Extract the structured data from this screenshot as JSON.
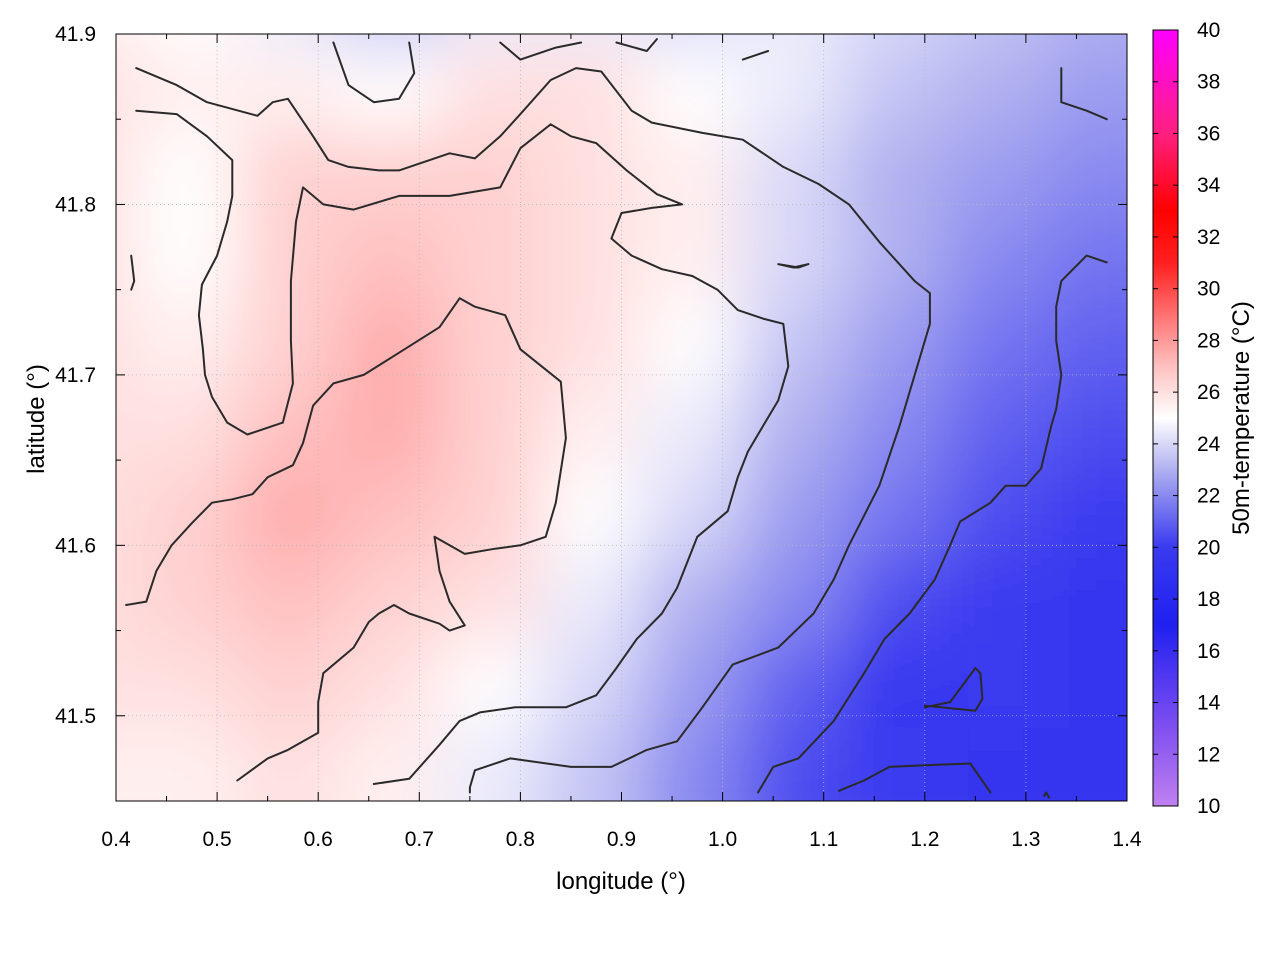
{
  "chart_data": {
    "type": "heatmap",
    "xlabel": "longitude (°)",
    "ylabel": "latitude (°)",
    "colorbar_label": "50m-temperature (°C)",
    "xlim": [
      0.4,
      1.4
    ],
    "ylim": [
      41.45,
      41.9
    ],
    "x_ticks": [
      "0.4",
      "0.5",
      "0.6",
      "0.7",
      "0.8",
      "0.9",
      "1.0",
      "1.1",
      "1.2",
      "1.3",
      "1.4"
    ],
    "y_ticks": [
      "41.5",
      "41.6",
      "41.7",
      "41.8",
      "41.9"
    ],
    "colorbar_range": [
      10,
      40
    ],
    "colorbar_ticks": [
      "10",
      "12",
      "14",
      "16",
      "18",
      "20",
      "22",
      "24",
      "26",
      "28",
      "30",
      "32",
      "34",
      "36",
      "38",
      "40"
    ],
    "colorbar_colors": [
      {
        "value": 10,
        "color": "#c080f0"
      },
      {
        "value": 13,
        "color": "#8050f0"
      },
      {
        "value": 17,
        "color": "#2020f0"
      },
      {
        "value": 20,
        "color": "#3a3af0"
      },
      {
        "value": 23,
        "color": "#b0b0f0"
      },
      {
        "value": 25,
        "color": "#ffffff"
      },
      {
        "value": 27,
        "color": "#ffc0c0"
      },
      {
        "value": 29,
        "color": "#ff7070"
      },
      {
        "value": 31,
        "color": "#ff2020"
      },
      {
        "value": 33,
        "color": "#ff0000"
      },
      {
        "value": 36,
        "color": "#ff2080"
      },
      {
        "value": 40,
        "color": "#ff00ff"
      }
    ],
    "grid": true,
    "field_samples": {
      "x": [
        0.4,
        0.5,
        0.6,
        0.7,
        0.8,
        0.9,
        1.0,
        1.1,
        1.2,
        1.3,
        1.4
      ],
      "y": [
        41.9,
        41.85,
        41.8,
        41.75,
        41.7,
        41.65,
        41.6,
        41.55,
        41.5,
        41.45
      ],
      "z": [
        [
          25.5,
          25.0,
          24.5,
          23.5,
          24.5,
          24.5,
          24.0,
          24.5,
          24.0,
          23.5,
          23.0
        ],
        [
          26.0,
          25.5,
          25.5,
          25.0,
          26.0,
          26.0,
          25.0,
          24.5,
          23.5,
          23.0,
          22.5
        ],
        [
          26.0,
          25.0,
          26.5,
          26.5,
          26.5,
          26.0,
          25.5,
          24.0,
          23.0,
          22.5,
          22.0
        ],
        [
          26.0,
          25.0,
          26.5,
          27.0,
          26.5,
          26.0,
          25.5,
          24.0,
          23.0,
          22.0,
          21.5
        ],
        [
          26.0,
          25.5,
          26.5,
          27.5,
          26.5,
          26.0,
          25.0,
          23.5,
          22.5,
          21.5,
          21.0
        ],
        [
          26.0,
          26.0,
          27.0,
          27.5,
          26.5,
          25.5,
          24.5,
          23.0,
          22.0,
          21.0,
          20.5
        ],
        [
          26.0,
          26.5,
          27.5,
          27.0,
          26.5,
          25.0,
          24.0,
          22.5,
          21.5,
          20.5,
          20.0
        ],
        [
          26.0,
          26.5,
          27.0,
          26.5,
          26.0,
          24.5,
          23.0,
          22.0,
          20.5,
          20.0,
          19.5
        ],
        [
          26.0,
          26.0,
          26.5,
          26.0,
          25.0,
          24.0,
          22.5,
          21.0,
          19.5,
          20.0,
          19.5
        ],
        [
          25.5,
          25.5,
          26.0,
          25.5,
          24.5,
          23.5,
          22.0,
          20.5,
          20.0,
          19.5,
          19.5
        ]
      ]
    },
    "contours": [
      [
        [
          0.42,
          41.88
        ],
        [
          0.46,
          41.87
        ],
        [
          0.49,
          41.86
        ],
        [
          0.54,
          41.852
        ],
        [
          0.555,
          41.86
        ],
        [
          0.57,
          41.862
        ],
        [
          0.595,
          41.84
        ],
        [
          0.61,
          41.826
        ],
        [
          0.63,
          41.822
        ],
        [
          0.66,
          41.82
        ],
        [
          0.68,
          41.82
        ],
        [
          0.73,
          41.83
        ],
        [
          0.755,
          41.827
        ],
        [
          0.78,
          41.84
        ],
        [
          0.8,
          41.853
        ],
        [
          0.83,
          41.873
        ],
        [
          0.855,
          41.88
        ],
        [
          0.88,
          41.878
        ],
        [
          0.91,
          41.855
        ],
        [
          0.93,
          41.848
        ],
        [
          0.98,
          41.842
        ],
        [
          1.02,
          41.838
        ],
        [
          1.06,
          41.822
        ],
        [
          1.095,
          41.812
        ],
        [
          1.125,
          41.8
        ],
        [
          1.155,
          41.778
        ],
        [
          1.19,
          41.755
        ],
        [
          1.205,
          41.748
        ],
        [
          1.205,
          41.73
        ],
        [
          1.19,
          41.7
        ],
        [
          1.175,
          41.67
        ],
        [
          1.155,
          41.635
        ],
        [
          1.125,
          41.6
        ],
        [
          1.11,
          41.58
        ],
        [
          1.09,
          41.56
        ],
        [
          1.055,
          41.54
        ],
        [
          1.01,
          41.53
        ],
        [
          0.98,
          41.505
        ],
        [
          0.955,
          41.485
        ],
        [
          0.925,
          41.48
        ],
        [
          0.89,
          41.47
        ],
        [
          0.85,
          41.47
        ],
        [
          0.79,
          41.475
        ],
        [
          0.755,
          41.468
        ],
        [
          0.75,
          41.458
        ],
        [
          0.75,
          41.455
        ]
      ],
      [
        [
          0.42,
          41.855
        ],
        [
          0.46,
          41.853
        ],
        [
          0.49,
          41.84
        ],
        [
          0.515,
          41.826
        ],
        [
          0.515,
          41.805
        ],
        [
          0.51,
          41.79
        ],
        [
          0.5,
          41.77
        ],
        [
          0.485,
          41.753
        ],
        [
          0.482,
          41.735
        ],
        [
          0.486,
          41.715
        ],
        [
          0.488,
          41.7
        ],
        [
          0.495,
          41.687
        ],
        [
          0.51,
          41.672
        ],
        [
          0.53,
          41.665
        ],
        [
          0.565,
          41.672
        ],
        [
          0.575,
          41.695
        ],
        [
          0.573,
          41.72
        ],
        [
          0.573,
          41.755
        ],
        [
          0.578,
          41.79
        ],
        [
          0.585,
          41.81
        ],
        [
          0.605,
          41.8
        ],
        [
          0.635,
          41.797
        ],
        [
          0.68,
          41.805
        ],
        [
          0.73,
          41.805
        ],
        [
          0.78,
          41.81
        ],
        [
          0.8,
          41.833
        ],
        [
          0.83,
          41.847
        ],
        [
          0.85,
          41.84
        ],
        [
          0.875,
          41.836
        ],
        [
          0.905,
          41.82
        ],
        [
          0.935,
          41.806
        ],
        [
          0.96,
          41.8
        ],
        [
          0.93,
          41.798
        ],
        [
          0.9,
          41.795
        ],
        [
          0.89,
          41.78
        ],
        [
          0.91,
          41.77
        ],
        [
          0.94,
          41.762
        ],
        [
          0.97,
          41.758
        ],
        [
          0.995,
          41.75
        ],
        [
          1.015,
          41.738
        ],
        [
          1.04,
          41.733
        ],
        [
          1.06,
          41.73
        ],
        [
          1.065,
          41.705
        ],
        [
          1.055,
          41.685
        ],
        [
          1.04,
          41.67
        ],
        [
          1.025,
          41.655
        ],
        [
          1.015,
          41.64
        ],
        [
          1.005,
          41.62
        ],
        [
          0.995,
          41.615
        ],
        [
          0.975,
          41.605
        ],
        [
          0.965,
          41.59
        ],
        [
          0.955,
          41.575
        ],
        [
          0.94,
          41.56
        ],
        [
          0.915,
          41.545
        ],
        [
          0.895,
          41.528
        ],
        [
          0.885,
          41.52
        ],
        [
          0.875,
          41.512
        ],
        [
          0.845,
          41.505
        ],
        [
          0.795,
          41.505
        ],
        [
          0.76,
          41.502
        ],
        [
          0.74,
          41.497
        ],
        [
          0.72,
          41.483
        ],
        [
          0.69,
          41.463
        ],
        [
          0.655,
          41.46
        ]
      ],
      [
        [
          0.41,
          41.565
        ],
        [
          0.43,
          41.567
        ],
        [
          0.44,
          41.585
        ],
        [
          0.455,
          41.6
        ],
        [
          0.475,
          41.613
        ],
        [
          0.495,
          41.625
        ],
        [
          0.515,
          41.627
        ],
        [
          0.535,
          41.63
        ],
        [
          0.55,
          41.64
        ],
        [
          0.575,
          41.647
        ],
        [
          0.585,
          41.66
        ],
        [
          0.595,
          41.682
        ],
        [
          0.615,
          41.695
        ],
        [
          0.645,
          41.7
        ],
        [
          0.68,
          41.713
        ],
        [
          0.72,
          41.728
        ],
        [
          0.74,
          41.745
        ],
        [
          0.755,
          41.74
        ],
        [
          0.785,
          41.735
        ],
        [
          0.8,
          41.715
        ],
        [
          0.84,
          41.696
        ],
        [
          0.845,
          41.663
        ],
        [
          0.835,
          41.625
        ],
        [
          0.825,
          41.605
        ],
        [
          0.8,
          41.6
        ],
        [
          0.775,
          41.598
        ],
        [
          0.745,
          41.595
        ],
        [
          0.73,
          41.6
        ],
        [
          0.715,
          41.605
        ],
        [
          0.72,
          41.585
        ],
        [
          0.73,
          41.567
        ],
        [
          0.745,
          41.553
        ],
        [
          0.73,
          41.55
        ],
        [
          0.72,
          41.554
        ],
        [
          0.69,
          41.56
        ],
        [
          0.675,
          41.565
        ],
        [
          0.66,
          41.56
        ],
        [
          0.65,
          41.555
        ],
        [
          0.635,
          41.54
        ],
        [
          0.605,
          41.525
        ],
        [
          0.6,
          41.508
        ],
        [
          0.6,
          41.49
        ],
        [
          0.57,
          41.48
        ],
        [
          0.55,
          41.475
        ],
        [
          0.52,
          41.462
        ]
      ],
      [
        [
          0.615,
          41.895
        ],
        [
          0.63,
          41.87
        ],
        [
          0.655,
          41.86
        ],
        [
          0.68,
          41.862
        ],
        [
          0.695,
          41.877
        ],
        [
          0.69,
          41.895
        ]
      ],
      [
        [
          0.78,
          41.895
        ],
        [
          0.8,
          41.885
        ],
        [
          0.835,
          41.892
        ],
        [
          0.86,
          41.895
        ]
      ],
      [
        [
          0.895,
          41.895
        ],
        [
          0.925,
          41.89
        ],
        [
          0.935,
          41.897
        ]
      ],
      [
        [
          1.02,
          41.885
        ],
        [
          1.045,
          41.89
        ]
      ],
      [
        [
          1.335,
          41.88
        ],
        [
          1.335,
          41.86
        ],
        [
          1.36,
          41.855
        ],
        [
          1.38,
          41.85
        ]
      ],
      [
        [
          0.415,
          41.77
        ],
        [
          0.418,
          41.755
        ],
        [
          0.415,
          41.75
        ]
      ],
      [
        [
          1.055,
          41.765
        ],
        [
          1.07,
          41.763
        ],
        [
          1.085,
          41.765
        ],
        [
          1.075,
          41.763
        ],
        [
          1.055,
          41.765
        ]
      ],
      [
        [
          1.38,
          41.766
        ],
        [
          1.36,
          41.77
        ],
        [
          1.335,
          41.755
        ],
        [
          1.33,
          41.74
        ],
        [
          1.33,
          41.72
        ],
        [
          1.335,
          41.7
        ],
        [
          1.33,
          41.68
        ],
        [
          1.325,
          41.67
        ],
        [
          1.315,
          41.645
        ],
        [
          1.3,
          41.635
        ],
        [
          1.28,
          41.635
        ],
        [
          1.265,
          41.625
        ],
        [
          1.235,
          41.614
        ],
        [
          1.225,
          41.6
        ],
        [
          1.21,
          41.58
        ],
        [
          1.185,
          41.56
        ],
        [
          1.16,
          41.545
        ],
        [
          1.14,
          41.525
        ],
        [
          1.11,
          41.497
        ],
        [
          1.075,
          41.475
        ],
        [
          1.05,
          41.47
        ],
        [
          1.035,
          41.455
        ]
      ],
      [
        [
          1.2,
          41.505
        ],
        [
          1.225,
          41.508
        ],
        [
          1.25,
          41.528
        ],
        [
          1.255,
          41.525
        ],
        [
          1.257,
          41.51
        ],
        [
          1.25,
          41.503
        ],
        [
          1.2,
          41.506
        ]
      ],
      [
        [
          1.115,
          41.456
        ],
        [
          1.14,
          41.462
        ],
        [
          1.165,
          41.47
        ],
        [
          1.2,
          41.471
        ],
        [
          1.245,
          41.472
        ],
        [
          1.265,
          41.455
        ]
      ],
      [
        [
          1.318,
          41.453
        ],
        [
          1.32,
          41.455
        ],
        [
          1.323,
          41.452
        ]
      ]
    ]
  }
}
